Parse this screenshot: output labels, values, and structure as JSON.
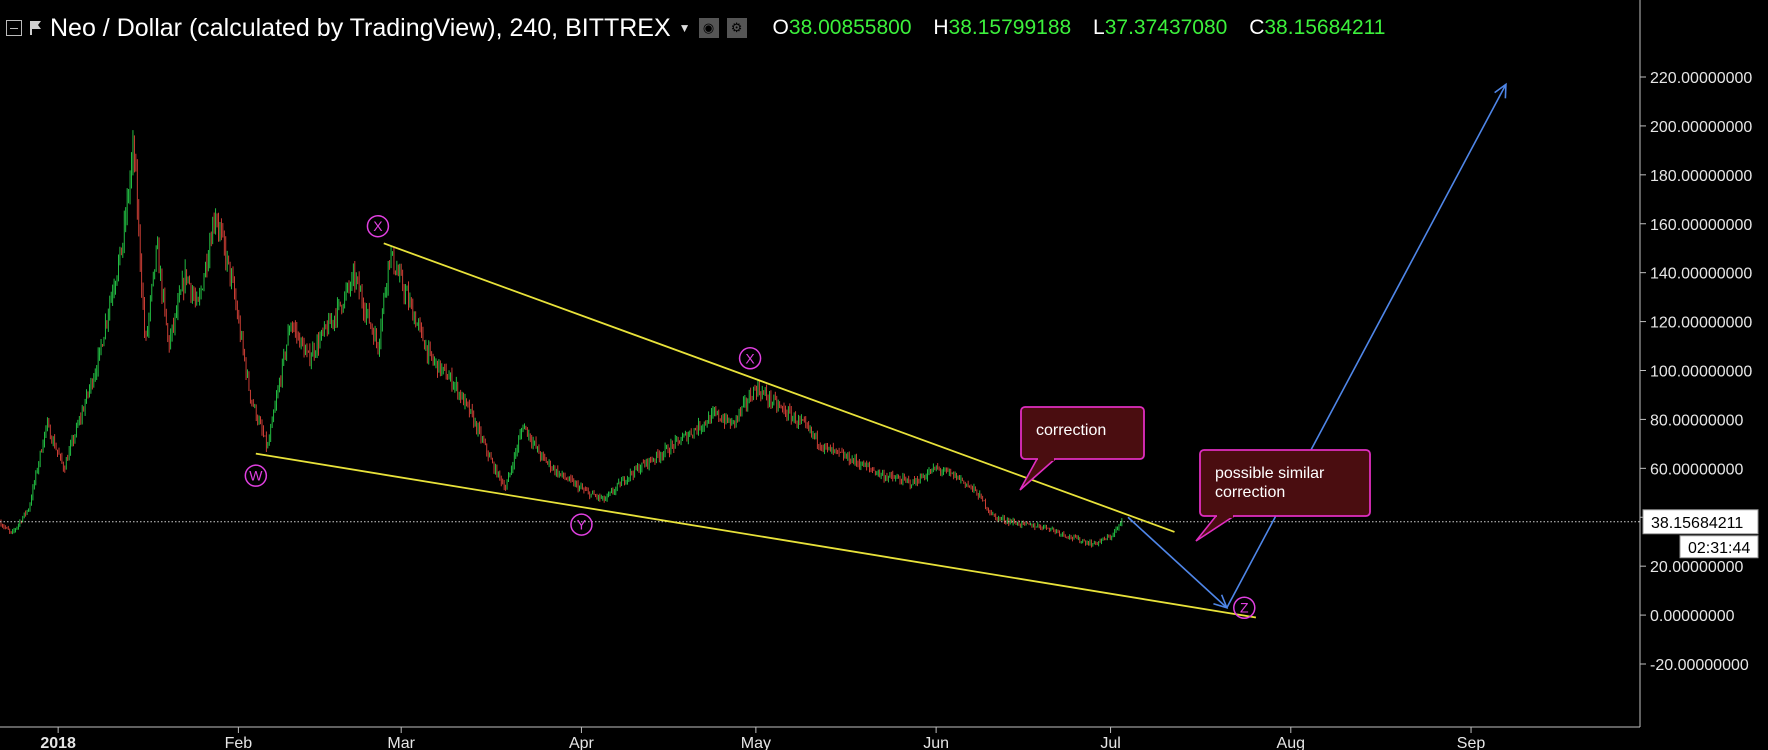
{
  "header": {
    "title": "Neo / Dollar (calculated by TradingView), 240, BITTREX",
    "ohlc": [
      {
        "key": "O",
        "value": "38.00855800"
      },
      {
        "key": "H",
        "value": "38.15799188"
      },
      {
        "key": "L",
        "value": "37.37437080"
      },
      {
        "key": "C",
        "value": "38.15684211"
      }
    ]
  },
  "chart_data": {
    "type": "candlestick",
    "x_ticks": [
      "2018",
      "Feb",
      "Mar",
      "Apr",
      "May",
      "Jun",
      "Jul",
      "Aug",
      "Sep"
    ],
    "y_ticks": [
      "220.00000000",
      "200.00000000",
      "180.00000000",
      "160.00000000",
      "140.00000000",
      "120.00000000",
      "100.00000000",
      "80.00000000",
      "60.00000000",
      "40.00000000",
      "20.00000000",
      "0.00000000",
      "-20.00000000"
    ],
    "ylim": [
      -22,
      230
    ],
    "last_price": "38.15684211",
    "countdown": "02:31:44",
    "price_path": [
      [
        "2017-12-22",
        38
      ],
      [
        "2017-12-24",
        33
      ],
      [
        "2017-12-27",
        44
      ],
      [
        "2017-12-30",
        78
      ],
      [
        "2018-01-02",
        60
      ],
      [
        "2018-01-05",
        82
      ],
      [
        "2018-01-08",
        105
      ],
      [
        "2018-01-10",
        130
      ],
      [
        "2018-01-12",
        150
      ],
      [
        "2018-01-14",
        192
      ],
      [
        "2018-01-16",
        110
      ],
      [
        "2018-01-18",
        150
      ],
      [
        "2018-01-20",
        110
      ],
      [
        "2018-01-23",
        140
      ],
      [
        "2018-01-25",
        125
      ],
      [
        "2018-01-28",
        165
      ],
      [
        "2018-01-31",
        135
      ],
      [
        "2018-02-03",
        90
      ],
      [
        "2018-02-06",
        68
      ],
      [
        "2018-02-10",
        120
      ],
      [
        "2018-02-13",
        105
      ],
      [
        "2018-02-17",
        120
      ],
      [
        "2018-02-21",
        138
      ],
      [
        "2018-02-25",
        110
      ],
      [
        "2018-02-27",
        148
      ],
      [
        "2018-03-02",
        130
      ],
      [
        "2018-03-06",
        105
      ],
      [
        "2018-03-10",
        95
      ],
      [
        "2018-03-13",
        82
      ],
      [
        "2018-03-17",
        60
      ],
      [
        "2018-03-19",
        52
      ],
      [
        "2018-03-22",
        78
      ],
      [
        "2018-03-25",
        65
      ],
      [
        "2018-03-28",
        58
      ],
      [
        "2018-04-02",
        50
      ],
      [
        "2018-04-05",
        47
      ],
      [
        "2018-04-09",
        57
      ],
      [
        "2018-04-12",
        62
      ],
      [
        "2018-04-16",
        68
      ],
      [
        "2018-04-20",
        75
      ],
      [
        "2018-04-24",
        82
      ],
      [
        "2018-04-27",
        78
      ],
      [
        "2018-05-01",
        93
      ],
      [
        "2018-05-05",
        85
      ],
      [
        "2018-05-09",
        78
      ],
      [
        "2018-05-13",
        68
      ],
      [
        "2018-05-18",
        63
      ],
      [
        "2018-05-23",
        57
      ],
      [
        "2018-05-28",
        54
      ],
      [
        "2018-06-01",
        60
      ],
      [
        "2018-06-05",
        56
      ],
      [
        "2018-06-08",
        50
      ],
      [
        "2018-06-11",
        40
      ],
      [
        "2018-06-16",
        37
      ],
      [
        "2018-06-20",
        36
      ],
      [
        "2018-06-24",
        32
      ],
      [
        "2018-06-28",
        29
      ],
      [
        "2018-07-01",
        32
      ],
      [
        "2018-07-03",
        38
      ]
    ],
    "annotations": {
      "trendlines": [
        {
          "from": [
            "2018-02-26",
            152
          ],
          "to": [
            "2018-07-12",
            34
          ]
        },
        {
          "from": [
            "2018-02-04",
            66
          ],
          "to": [
            "2018-07-26",
            -1
          ]
        }
      ],
      "projection": [
        [
          "2018-07-04",
          40
        ],
        [
          "2018-07-21",
          3
        ],
        [
          "2018-09-07",
          217
        ]
      ],
      "wave_labels": [
        {
          "text": "W",
          "date": "2018-02-04",
          "price": 57
        },
        {
          "text": "X",
          "date": "2018-02-25",
          "price": 159
        },
        {
          "text": "Y",
          "date": "2018-04-01",
          "price": 37
        },
        {
          "text": "X",
          "date": "2018-04-30",
          "price": 105
        },
        {
          "text": "Z",
          "date": "2018-07-24",
          "price": 3
        }
      ],
      "callouts": [
        {
          "text": "correction"
        },
        {
          "text": "possible similar correction"
        }
      ]
    }
  }
}
